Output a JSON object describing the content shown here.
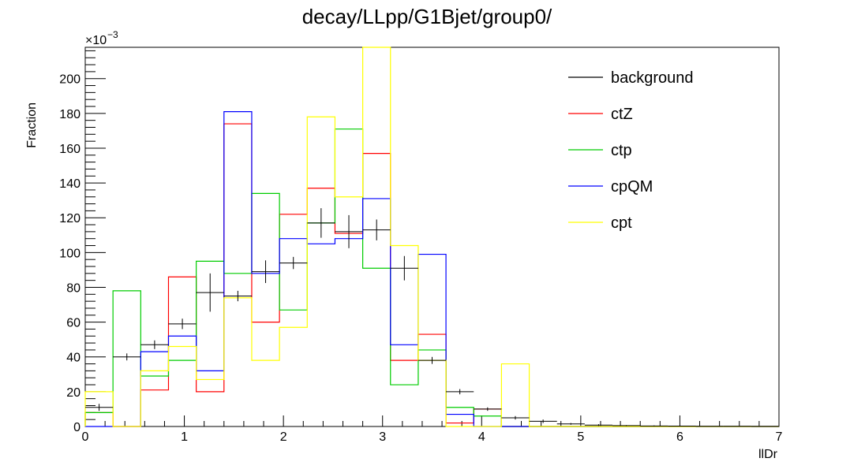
{
  "chart_data": {
    "type": "line",
    "title": "decay/LLpp/G1Bjet/group0/",
    "xlabel": "llDr",
    "ylabel": "Fraction",
    "y_exponent": "×10",
    "y_exponent_power": "−3",
    "xlim": [
      0,
      7
    ],
    "ylim": [
      0,
      218
    ],
    "x_ticks": [
      0,
      1,
      2,
      3,
      4,
      5,
      6,
      7
    ],
    "y_ticks": [
      0,
      20,
      40,
      60,
      80,
      100,
      120,
      140,
      160,
      180,
      200
    ],
    "bin_edges": [
      0,
      0.28,
      0.56,
      0.84,
      1.12,
      1.4,
      1.68,
      1.96,
      2.24,
      2.52,
      2.8,
      3.08,
      3.36,
      3.64,
      3.92,
      4.2,
      4.48,
      4.76,
      5.04,
      5.32,
      5.6,
      5.88,
      6.16,
      6.44,
      6.72,
      7.0
    ],
    "legend_position": "top-right",
    "series": [
      {
        "name": "background",
        "color": "#000000",
        "style": "errorbars",
        "values": [
          11,
          40,
          47,
          59,
          77,
          75,
          89,
          94,
          117,
          112,
          113,
          91,
          38,
          20,
          10,
          5,
          3,
          1.5,
          0.8,
          0.5,
          0.3,
          0.2,
          0.1,
          0.1,
          0.05
        ],
        "errors": [
          2,
          2,
          2.5,
          3,
          11,
          3,
          6.5,
          3.5,
          8.5,
          9.5,
          6,
          7,
          2,
          1.5,
          1,
          1,
          1,
          0.5,
          0.5,
          0.3,
          0.3,
          0.2,
          0.1,
          0.1,
          0.05
        ]
      },
      {
        "name": "ctZ",
        "color": "#ff0000",
        "style": "step",
        "values": [
          8,
          0,
          21,
          86,
          20,
          174,
          60,
          122,
          137,
          111,
          157,
          38,
          53,
          2,
          10,
          0,
          0,
          0,
          0,
          0,
          0,
          0,
          0,
          0,
          0
        ]
      },
      {
        "name": "ctp",
        "color": "#00cc00",
        "style": "step",
        "values": [
          8,
          78,
          29,
          38,
          95,
          88,
          134,
          67,
          117,
          171,
          91,
          24,
          44,
          11,
          6,
          0,
          0,
          0,
          0,
          0,
          0,
          0,
          0,
          0,
          0
        ]
      },
      {
        "name": "cpQM",
        "color": "#0000ff",
        "style": "step",
        "values": [
          0,
          0,
          43,
          52,
          32,
          181,
          88,
          108,
          105,
          108,
          131,
          47,
          99,
          7,
          0,
          0,
          0,
          0,
          0,
          0,
          0,
          0,
          0,
          0,
          0
        ]
      },
      {
        "name": "cpt",
        "color": "#ffff00",
        "style": "step",
        "values": [
          20,
          0,
          32,
          46,
          27,
          74,
          38,
          57,
          178,
          132,
          218,
          104,
          38,
          0,
          0,
          36,
          0,
          0,
          0,
          0,
          0,
          0,
          0,
          0,
          0
        ]
      }
    ]
  }
}
